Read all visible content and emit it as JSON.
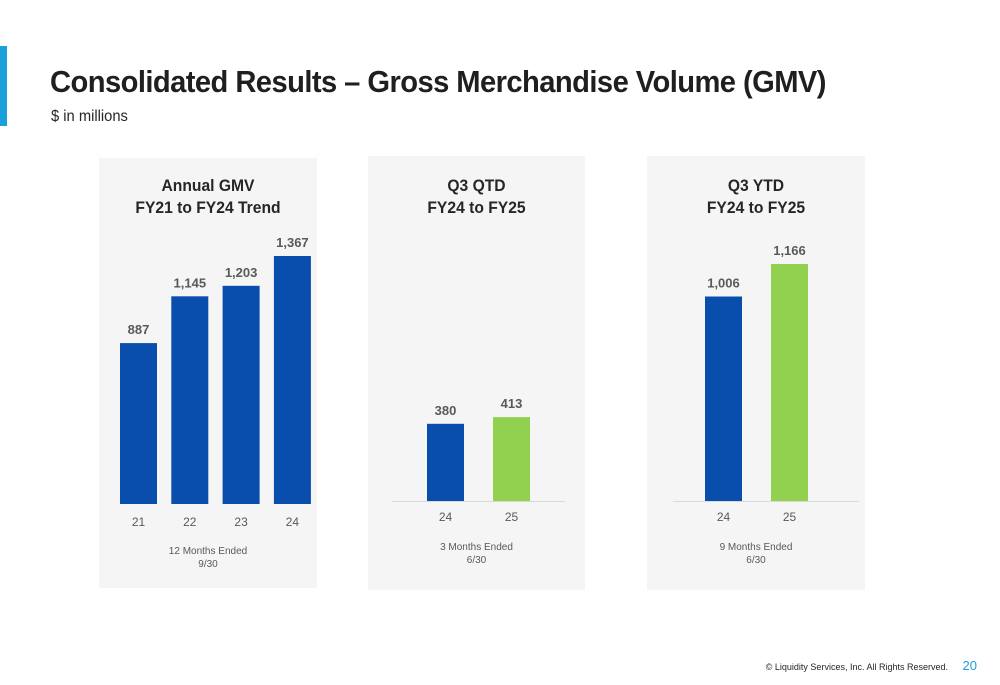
{
  "slide": {
    "title": "Consolidated Results – Gross Merchandise Volume (GMV)",
    "subtitle": "$ in millions",
    "accent_color": "#1a9fd9",
    "footer": "© Liquidity Services, Inc. All Rights Reserved.",
    "page_number": "20"
  },
  "colors": {
    "fy_prior": "#0a4ead",
    "fy_current": "#92d050",
    "panel_bg": "#f5f5f5"
  },
  "chart_data": [
    {
      "type": "bar",
      "title_lines": [
        "Annual GMV",
        "FY21 to FY24 Trend"
      ],
      "categories": [
        "21",
        "22",
        "23",
        "24"
      ],
      "values": [
        887,
        1145,
        1203,
        1367
      ],
      "value_labels": [
        "887",
        "1,145",
        "1,203",
        "1,367"
      ],
      "bar_colors": [
        "#0a4ead",
        "#0a4ead",
        "#0a4ead",
        "#0a4ead"
      ],
      "footer_lines": [
        "12 Months Ended",
        "9/30"
      ],
      "ylim": [
        0,
        1367
      ],
      "grid": false
    },
    {
      "type": "bar",
      "title_lines": [
        "Q3 QTD",
        "FY24 to FY25"
      ],
      "categories": [
        "24",
        "25"
      ],
      "values": [
        380,
        413
      ],
      "value_labels": [
        "380",
        "413"
      ],
      "bar_colors": [
        "#0a4ead",
        "#92d050"
      ],
      "footer_lines": [
        "3 Months Ended",
        "6/30"
      ],
      "ylim": [
        0,
        1166
      ],
      "grid": false
    },
    {
      "type": "bar",
      "title_lines": [
        "Q3 YTD",
        "FY24 to FY25"
      ],
      "categories": [
        "24",
        "25"
      ],
      "values": [
        1006,
        1166
      ],
      "value_labels": [
        "1,006",
        "1,166"
      ],
      "bar_colors": [
        "#0a4ead",
        "#92d050"
      ],
      "footer_lines": [
        "9 Months Ended",
        "6/30"
      ],
      "ylim": [
        0,
        1166
      ],
      "grid": false
    }
  ]
}
